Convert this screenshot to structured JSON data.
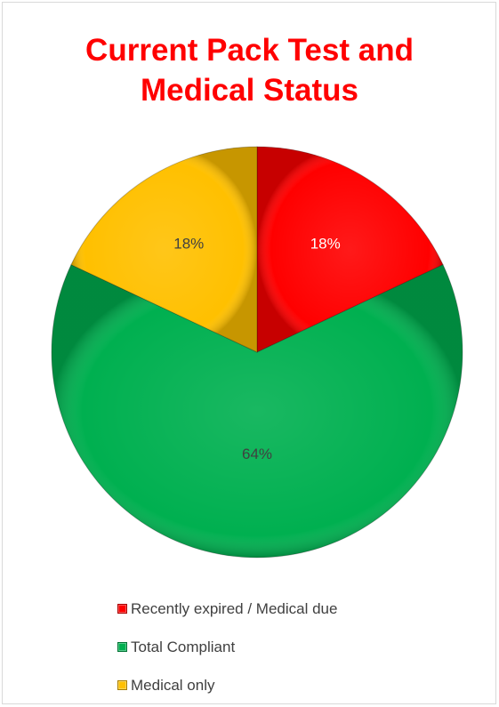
{
  "chart_data": {
    "type": "pie",
    "title": "Current Pack Test and Medical Status",
    "title_lines": [
      "Current Pack Test and",
      "Medical Status"
    ],
    "categories": [
      "Recently expired / Medical due",
      "Total Compliant",
      "Medical only"
    ],
    "values": [
      18,
      64,
      18
    ],
    "data_labels": [
      "18%",
      "64%",
      "18%"
    ],
    "colors": [
      "#ff0000",
      "#00b050",
      "#ffc000"
    ],
    "label_colors": [
      "#ffffff",
      "#404040",
      "#404040"
    ],
    "title_color": "#ff0000",
    "legend_position": "bottom",
    "start_angle_deg": 0,
    "direction": "clockwise"
  }
}
